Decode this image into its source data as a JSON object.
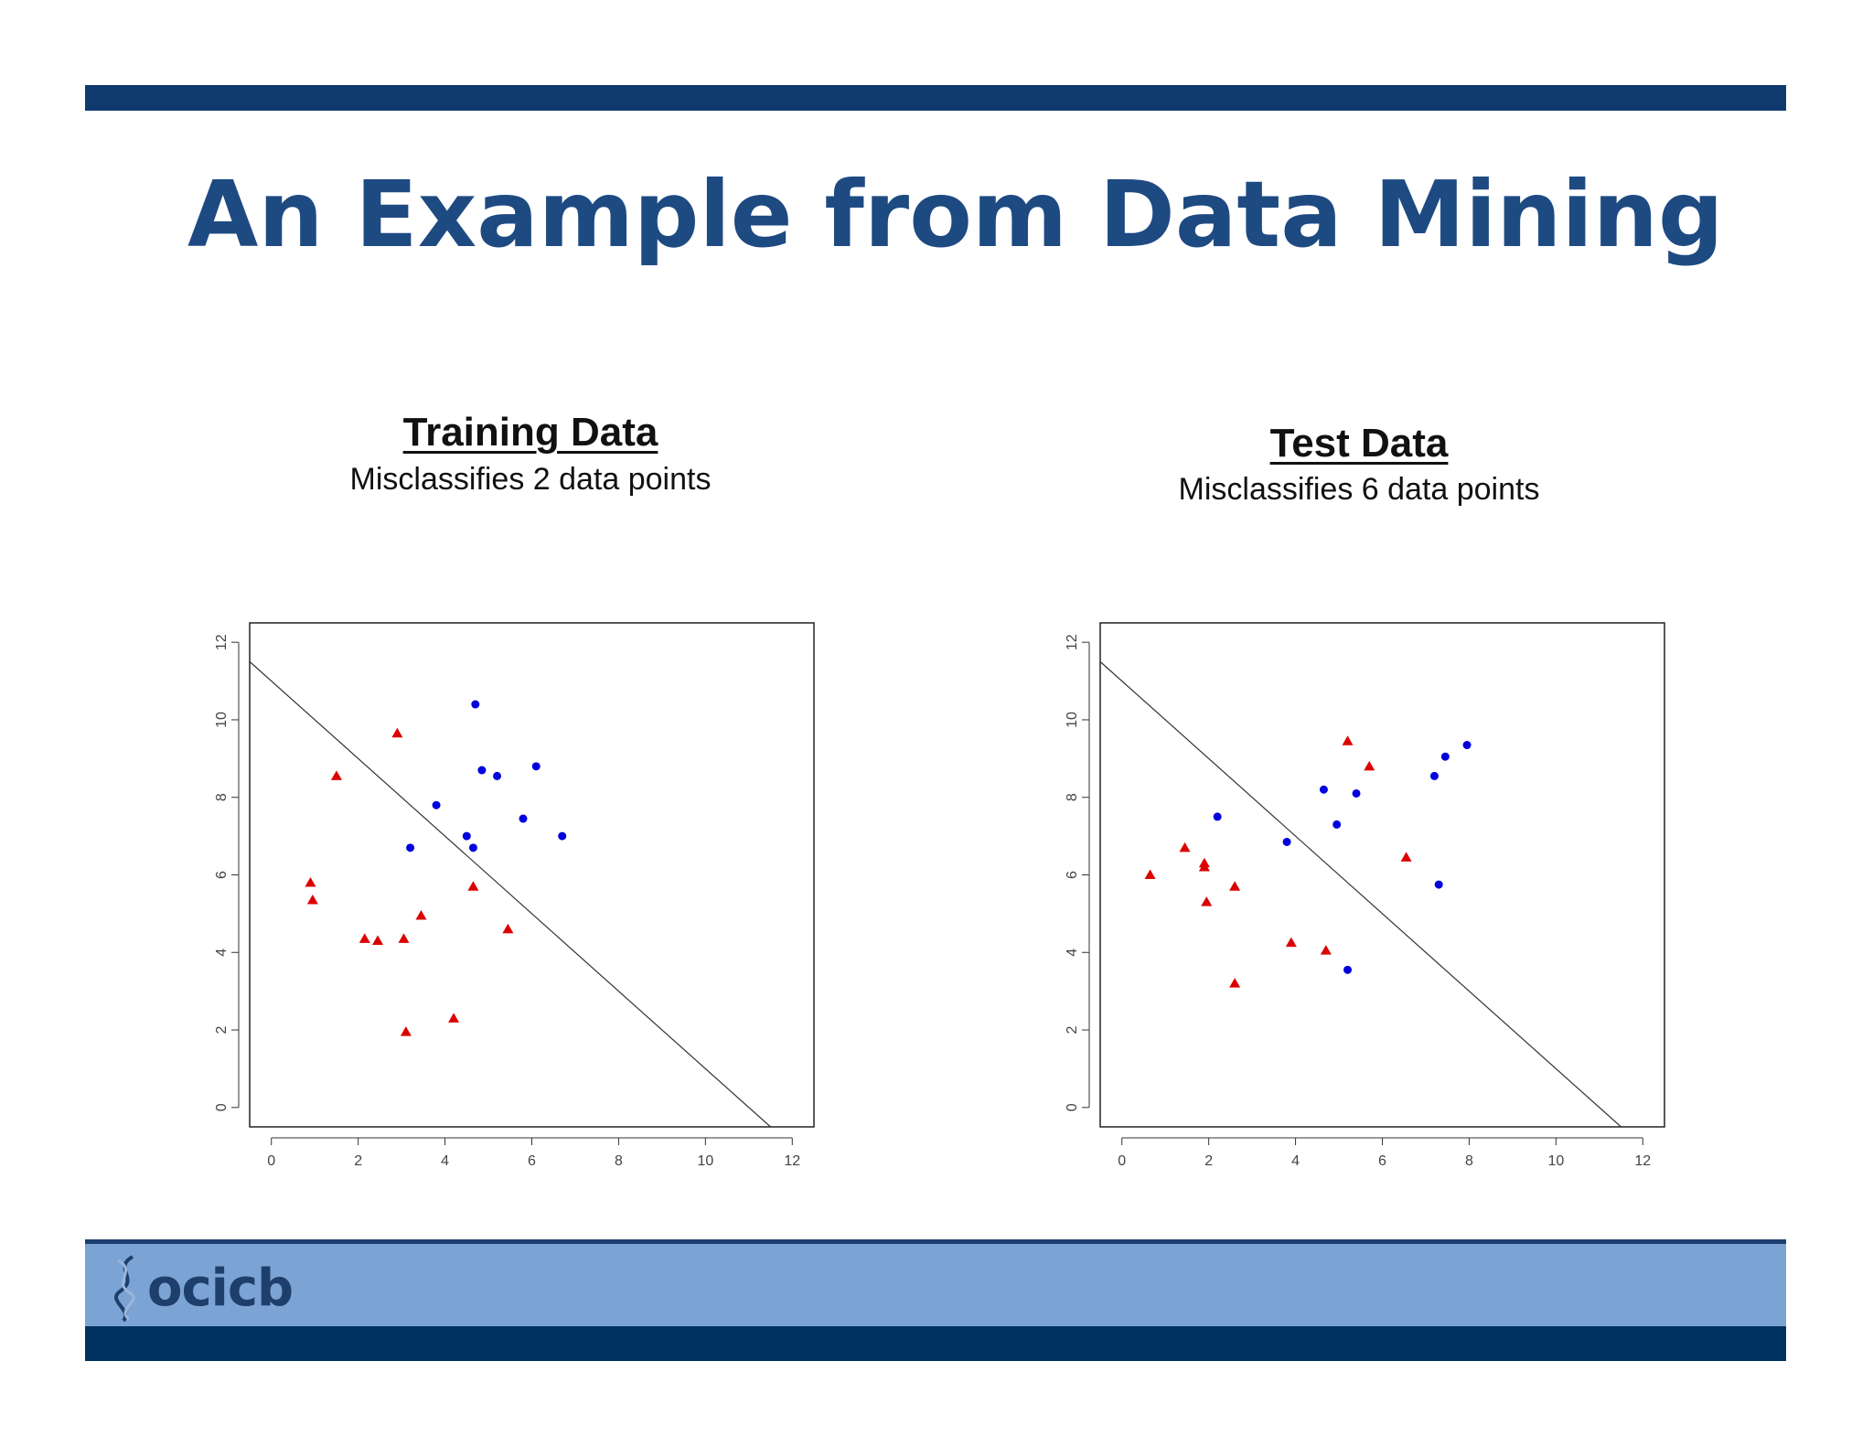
{
  "slide": {
    "title": "An Example from Data Mining",
    "logo_text": "ocicb"
  },
  "colors": {
    "top_bar": "#0f3a6e",
    "title": "#1e4a82",
    "band": "#7ba3d4",
    "band_bottom": "#003262",
    "red_class": "#dd0000",
    "blue_class": "#0000dd"
  },
  "panels": [
    {
      "title": "Training Data",
      "subtitle": "Misclassifies 2 data points"
    },
    {
      "title": "Test Data",
      "subtitle": "Misclassifies 6 data points"
    }
  ],
  "chart_data": [
    {
      "type": "scatter",
      "title": "Training Data",
      "xlabel": "",
      "ylabel": "",
      "xlim": [
        -0.5,
        12.5
      ],
      "ylim": [
        -0.5,
        12.5
      ],
      "xticks": [
        0,
        2,
        4,
        6,
        8,
        10,
        12
      ],
      "yticks": [
        0,
        2,
        4,
        6,
        8,
        10,
        12
      ],
      "grid": false,
      "decision_line": [
        [
          -0.5,
          11.5
        ],
        [
          11.5,
          -0.5
        ]
      ],
      "series": [
        {
          "marker": "triangle",
          "color": "#dd0000",
          "points": [
            [
              0.9,
              5.8
            ],
            [
              0.95,
              5.35
            ],
            [
              1.5,
              8.55
            ],
            [
              2.15,
              4.35
            ],
            [
              2.45,
              4.3
            ],
            [
              2.9,
              9.65
            ],
            [
              3.05,
              4.35
            ],
            [
              3.1,
              1.95
            ],
            [
              3.45,
              4.95
            ],
            [
              4.2,
              2.3
            ],
            [
              4.65,
              5.7
            ],
            [
              5.45,
              4.6
            ]
          ]
        },
        {
          "marker": "circle",
          "color": "#0000dd",
          "points": [
            [
              3.2,
              6.7
            ],
            [
              3.8,
              7.8
            ],
            [
              4.5,
              7.0
            ],
            [
              4.65,
              6.7
            ],
            [
              4.7,
              10.4
            ],
            [
              4.85,
              8.7
            ],
            [
              5.2,
              8.55
            ],
            [
              5.8,
              7.45
            ],
            [
              6.1,
              8.8
            ],
            [
              6.7,
              7.0
            ]
          ]
        }
      ]
    },
    {
      "type": "scatter",
      "title": "Test Data",
      "xlabel": "",
      "ylabel": "",
      "xlim": [
        -0.5,
        12.5
      ],
      "ylim": [
        -0.5,
        12.5
      ],
      "xticks": [
        0,
        2,
        4,
        6,
        8,
        10,
        12
      ],
      "yticks": [
        0,
        2,
        4,
        6,
        8,
        10,
        12
      ],
      "grid": false,
      "decision_line": [
        [
          -0.5,
          11.5
        ],
        [
          11.5,
          -0.5
        ]
      ],
      "series": [
        {
          "marker": "triangle",
          "color": "#dd0000",
          "points": [
            [
              0.65,
              6.0
            ],
            [
              1.45,
              6.7
            ],
            [
              1.9,
              6.3
            ],
            [
              1.9,
              6.2
            ],
            [
              1.95,
              5.3
            ],
            [
              2.6,
              5.7
            ],
            [
              2.6,
              3.2
            ],
            [
              3.9,
              4.25
            ],
            [
              4.7,
              4.05
            ],
            [
              5.2,
              9.45
            ],
            [
              5.7,
              8.8
            ],
            [
              6.55,
              6.45
            ]
          ]
        },
        {
          "marker": "circle",
          "color": "#0000dd",
          "points": [
            [
              2.2,
              7.5
            ],
            [
              3.8,
              6.85
            ],
            [
              4.65,
              8.2
            ],
            [
              4.95,
              7.3
            ],
            [
              5.2,
              3.55
            ],
            [
              5.4,
              8.1
            ],
            [
              7.2,
              8.55
            ],
            [
              7.3,
              5.75
            ],
            [
              7.45,
              9.05
            ],
            [
              7.95,
              9.35
            ]
          ]
        }
      ]
    }
  ]
}
